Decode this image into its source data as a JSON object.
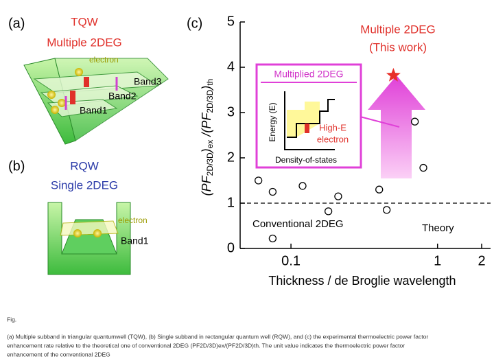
{
  "panel_a": {
    "label": "(a)",
    "title": "TQW",
    "subtitle": "Multiple 2DEG",
    "electron": "electron",
    "bands": [
      "Band3",
      "Band2",
      "Band1"
    ]
  },
  "panel_b": {
    "label": "(b)",
    "title": "RQW",
    "subtitle": "Single 2DEG",
    "electron": "electron",
    "bands": [
      "Band1"
    ]
  },
  "chart_data": {
    "type": "scatter",
    "panel_label": "(c)",
    "xlabel": "Thickness / de Broglie wavelength",
    "ylabel": [
      "(PF",
      "2D/3D",
      ")",
      "ex",
      " /(PF",
      "2D/3D",
      ")",
      "th"
    ],
    "xlog": true,
    "xlim": [
      0.045,
      2.3
    ],
    "xticks": [
      0.1,
      1,
      2
    ],
    "ylim": [
      0,
      5
    ],
    "yticks": [
      0,
      1,
      2,
      3,
      4,
      5
    ],
    "series": [
      {
        "name": "Conventional 2DEG",
        "color": "#000000",
        "marker": "open-circle",
        "x": [
          0.06,
          0.075,
          0.075,
          0.12,
          0.18,
          0.21,
          0.4,
          0.45,
          0.7,
          0.8
        ],
        "values": [
          1.5,
          1.25,
          0.22,
          1.38,
          0.82,
          1.15,
          1.3,
          0.85,
          2.8,
          1.78
        ]
      },
      {
        "name": "Multiple 2DEG",
        "color": "#e8302a",
        "marker": "star",
        "x": [
          0.5
        ],
        "values": [
          3.82
        ]
      }
    ],
    "reference_line": {
      "value": 1,
      "label": "Theory"
    },
    "annotations": {
      "this_work": "(This work)",
      "inset_title": "Multiplied 2DEG",
      "inset_ylabel": "Energy (E)",
      "inset_xlabel": "Density-of-states",
      "inset_note": [
        "High-E",
        "electron"
      ]
    }
  },
  "caption": {
    "fig": "Fig.",
    "lines": [
      "(a) Multiple subband in triangular quantumwell (TQW), (b) Single subband in rectangular quantum well (RQW), and (c) the experimental thermoelectric power factor",
      "enhancement rate relative to the theoretical one of conventional 2DEG (PF2D/3D)ex/(PF2D/3D)th. The unit value indicates the thermoelectric power factor",
      "enhancement of the conventional 2DEG"
    ]
  }
}
